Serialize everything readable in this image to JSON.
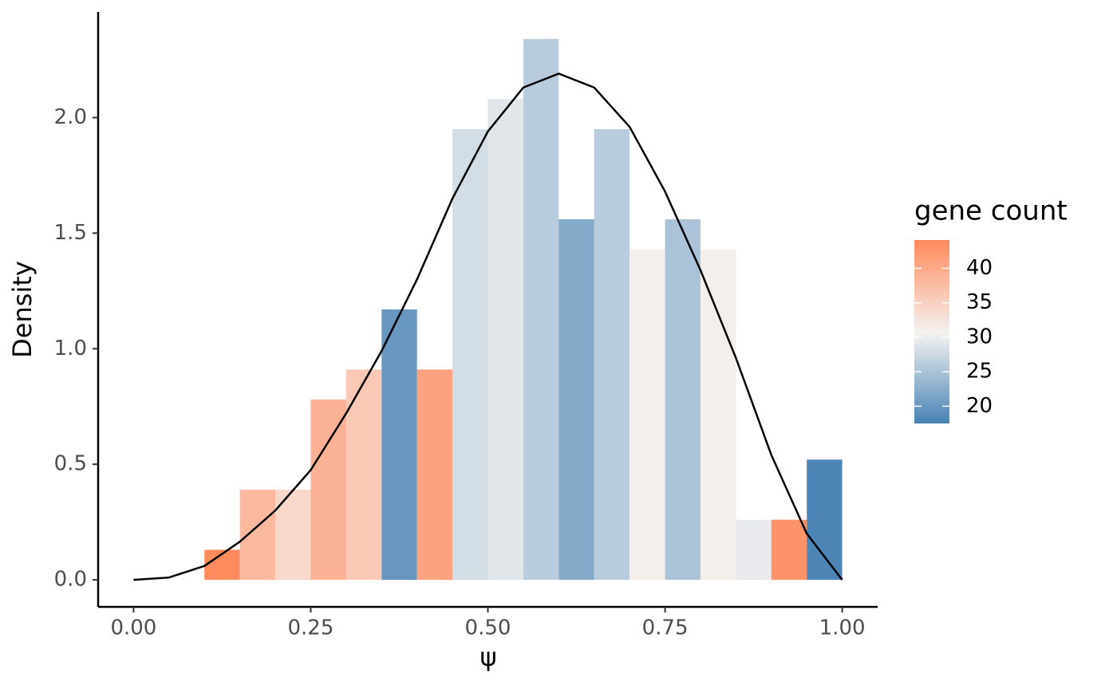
{
  "chart_data": {
    "type": "histogram",
    "x_label": "ψ",
    "y_label": "Density",
    "bins": [
      0.1,
      0.15,
      0.2,
      0.25,
      0.3,
      0.35,
      0.4,
      0.45,
      0.5,
      0.55,
      0.6,
      0.65,
      0.7,
      0.75,
      0.8,
      0.85,
      0.9,
      0.95,
      1.0
    ],
    "values": [
      0.13,
      0.39,
      0.39,
      0.78,
      0.91,
      1.17,
      0.91,
      1.95,
      2.08,
      2.34,
      1.56,
      1.95,
      1.43,
      1.56,
      1.43,
      0.26,
      0.26,
      0.52
    ],
    "gene_counts": [
      44,
      38,
      34,
      39,
      36,
      20,
      41,
      28,
      29,
      26,
      22,
      26,
      31,
      25,
      31,
      29.5,
      43,
      18
    ],
    "color_scale": {
      "title": "gene count",
      "low": "#4682b4",
      "mid": "#f5f3f2",
      "high": "#ff8a5c",
      "midpoint": 30.5,
      "limits": [
        17.5,
        44.1
      ],
      "ticks": [
        20,
        25,
        30,
        35,
        40
      ]
    },
    "density_curve": {
      "color": "#000000",
      "x": [
        0,
        0.05,
        0.1,
        0.15,
        0.2,
        0.25,
        0.3,
        0.35,
        0.4,
        0.45,
        0.5,
        0.55,
        0.6,
        0.65,
        0.7,
        0.75,
        0.8,
        0.85,
        0.9,
        0.95,
        1.0
      ],
      "y": [
        0,
        0.01,
        0.06,
        0.165,
        0.3,
        0.475,
        0.72,
        0.99,
        1.3,
        1.65,
        1.94,
        2.13,
        2.19,
        2.13,
        1.96,
        1.68,
        1.34,
        0.96,
        0.54,
        0.2,
        0
      ]
    },
    "xlim": [
      -0.05,
      1.05
    ],
    "ylim": [
      -0.117,
      2.457
    ],
    "xticks": [
      {
        "value": 0,
        "label": "0.00"
      },
      {
        "value": 0.25,
        "label": "0.25"
      },
      {
        "value": 0.5,
        "label": "0.50"
      },
      {
        "value": 0.75,
        "label": "0.75"
      },
      {
        "value": 1,
        "label": "1.00"
      }
    ],
    "yticks": [
      {
        "value": 0,
        "label": "0.0"
      },
      0.5,
      {
        "value": 1,
        "label": "1.0"
      },
      1.5,
      {
        "value": 2,
        "label": "2.0"
      }
    ]
  }
}
